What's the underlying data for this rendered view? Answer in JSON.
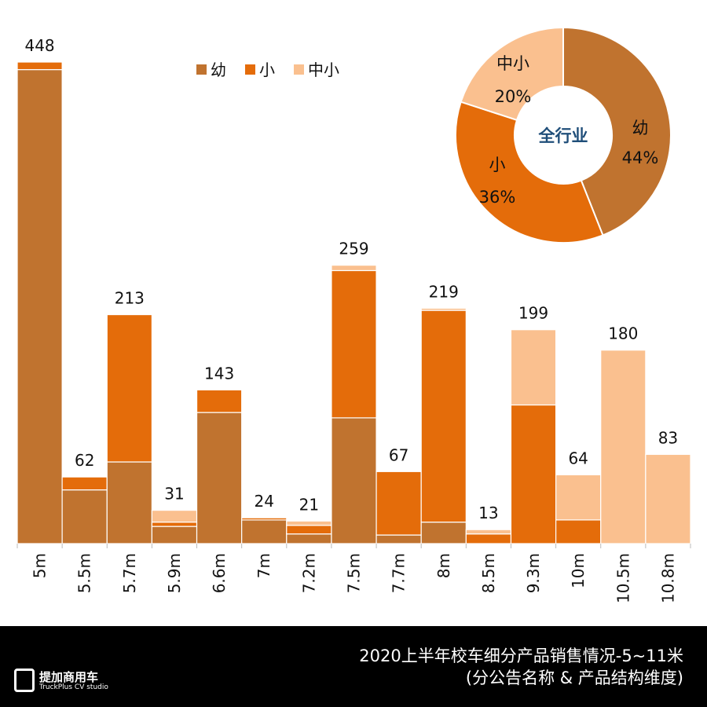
{
  "chart_data": {
    "type": "bar",
    "stacked": true,
    "categories": [
      "5m",
      "5.5m",
      "5.7m",
      "5.9m",
      "6.6m",
      "7m",
      "7.2m",
      "7.5m",
      "7.7m",
      "8m",
      "8.5m",
      "9.3m",
      "10m",
      "10.5m",
      "10.8m"
    ],
    "totals": [
      448,
      62,
      213,
      31,
      143,
      24,
      21,
      259,
      67,
      219,
      13,
      199,
      64,
      180,
      83
    ],
    "series": [
      {
        "name": "幼",
        "color": "#C0732F",
        "values": [
          441,
          50,
          76,
          16,
          122,
          22,
          9,
          117,
          8,
          20,
          0,
          0,
          0,
          0,
          0
        ]
      },
      {
        "name": "小",
        "color": "#E46C0A",
        "values": [
          7,
          12,
          137,
          4,
          21,
          2,
          8,
          137,
          59,
          197,
          9,
          129,
          22,
          0,
          0
        ]
      },
      {
        "name": "中小",
        "color": "#FAC08F",
        "values": [
          0,
          0,
          0,
          11,
          0,
          0,
          4,
          5,
          0,
          2,
          4,
          70,
          42,
          180,
          83
        ]
      }
    ],
    "ylim": [
      0,
      448
    ],
    "legend": "top-center",
    "pie": {
      "center_label": "全行业",
      "slices": [
        {
          "name": "幼",
          "value": 44,
          "label": "44%"
        },
        {
          "name": "小",
          "value": 36,
          "label": "36%"
        },
        {
          "name": "中小",
          "value": 20,
          "label": "20%"
        }
      ]
    }
  },
  "footer": {
    "title": "2020上半年校车细分产品销售情况-5~11米",
    "subtitle": "(分公告名称 & 产品结构维度)",
    "logo_cn": "提加商用车",
    "logo_en": "TruckPlus CV studio"
  }
}
